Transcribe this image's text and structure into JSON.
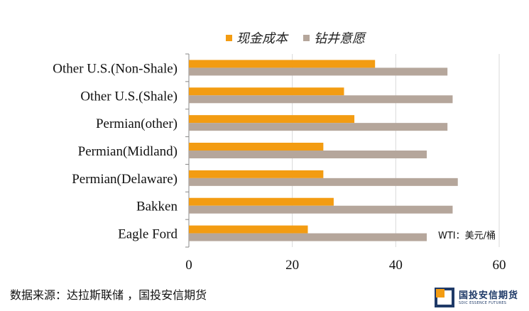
{
  "chart_data": {
    "type": "bar",
    "orientation": "horizontal",
    "title": "",
    "xlabel": "",
    "ylabel": "",
    "categories": [
      "Other U.S.(Non-Shale)",
      "Other U.S.(Shale)",
      "Permian(other)",
      "Permian(Midland)",
      "Permian(Delaware)",
      "Bakken",
      "Eagle Ford"
    ],
    "series": [
      {
        "name": "现金成本",
        "color": "#f39c12",
        "values": [
          36,
          30,
          32,
          26,
          26,
          28,
          23
        ]
      },
      {
        "name": "钻井意愿",
        "color": "#b5a69b",
        "values": [
          50,
          51,
          50,
          46,
          52,
          51,
          46
        ]
      }
    ],
    "xlim": [
      0,
      60
    ],
    "xticks": [
      "0",
      "20",
      "40",
      "60"
    ],
    "grid": true,
    "legend_position": "top"
  },
  "annotation": "WTI：美元/桶",
  "source": "数据来源：达拉斯联储 ，国投安信期货",
  "logo": {
    "cn": "国投安信期货",
    "en": "SDIC ESSENCE FUTURES"
  }
}
